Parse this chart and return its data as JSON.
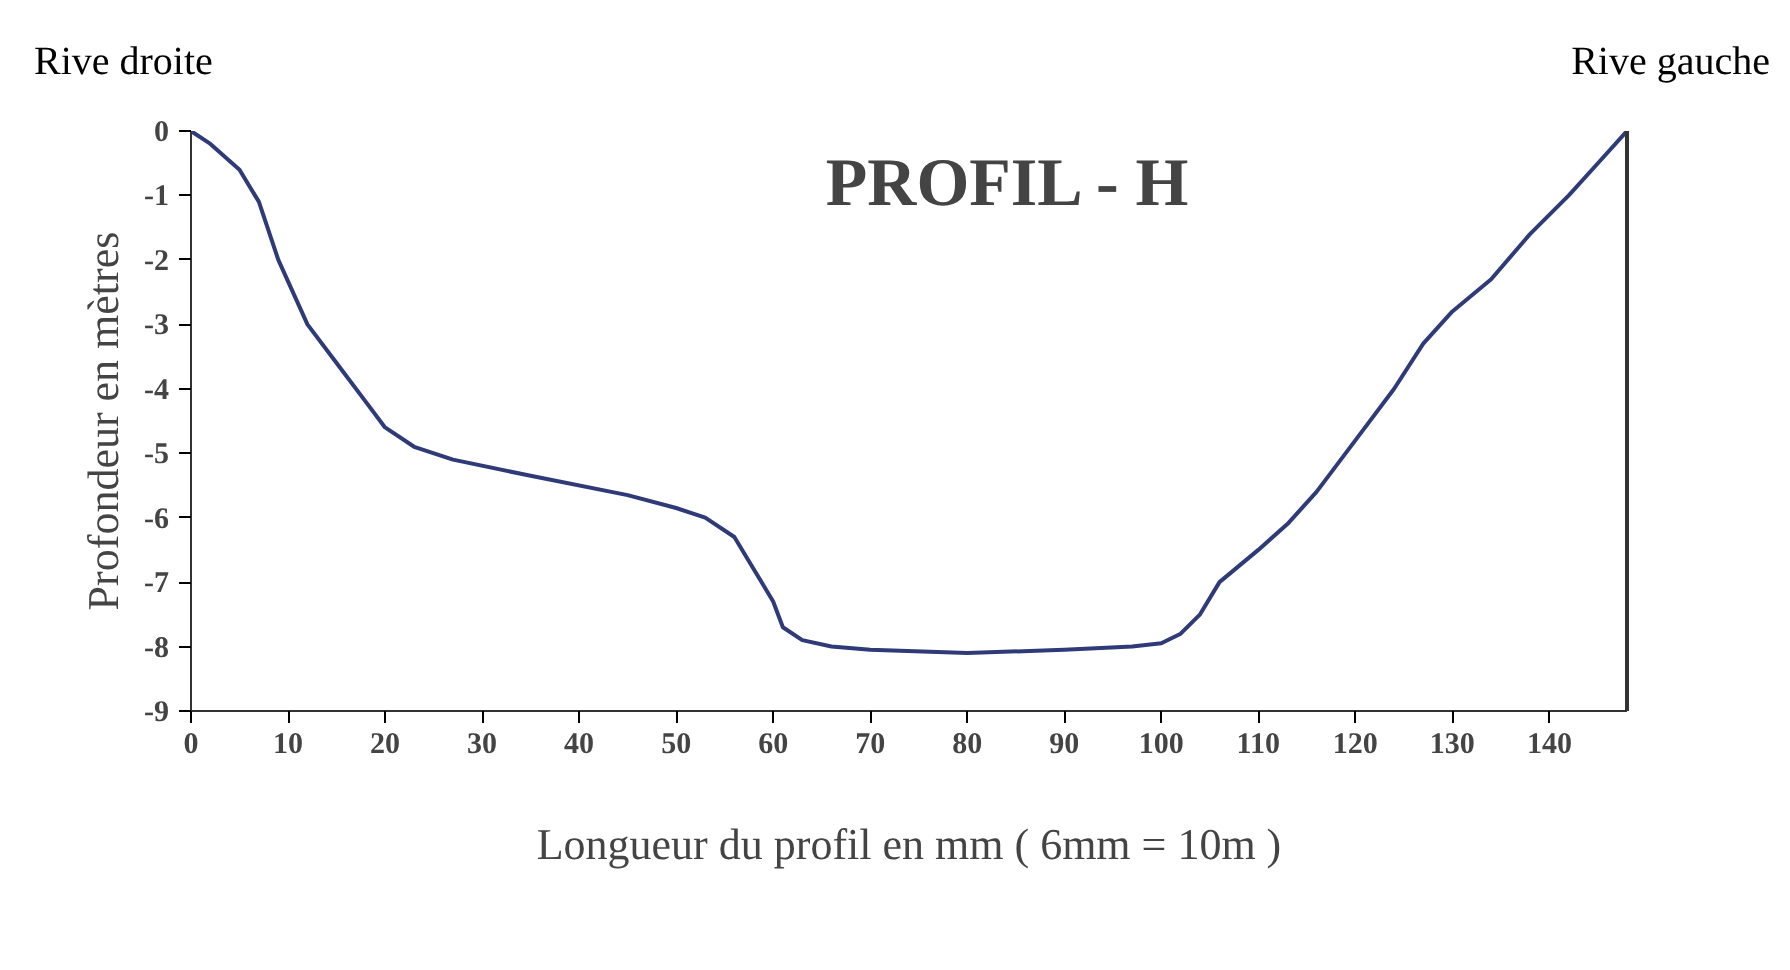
{
  "chart_data": {
    "type": "line",
    "title": "PROFIL - H",
    "xlabel": "Longueur du profil en mm ( 6mm = 10m )",
    "ylabel": "Profondeur en mètres",
    "annotations": [
      "Rive droite",
      "Rive gauche"
    ],
    "x": [
      0,
      2,
      5,
      7,
      9,
      12,
      15,
      18,
      20,
      23,
      27,
      35,
      45,
      50,
      53,
      56,
      58,
      60,
      61,
      63,
      66,
      70,
      80,
      90,
      97,
      100,
      102,
      104,
      106,
      110,
      113,
      116,
      120,
      124,
      127,
      130,
      134,
      138,
      142,
      145,
      148
    ],
    "series": [
      {
        "color": "#2f3a78",
        "values": [
          0,
          -0.2,
          -0.6,
          -1.1,
          -2.0,
          -3.0,
          -3.6,
          -4.2,
          -4.6,
          -4.9,
          -5.1,
          -5.35,
          -5.65,
          -5.85,
          -6.0,
          -6.3,
          -6.8,
          -7.3,
          -7.7,
          -7.9,
          -8.0,
          -8.05,
          -8.1,
          -8.05,
          -8.0,
          -7.95,
          -7.8,
          -7.5,
          -7.0,
          -6.5,
          -6.1,
          -5.6,
          -4.8,
          -4.0,
          -3.3,
          -2.8,
          -2.3,
          -1.6,
          -1.0,
          -0.5,
          0
        ]
      }
    ],
    "xlim": [
      0,
      148
    ],
    "ylim": [
      -9,
      0
    ],
    "xticks": [
      0,
      10,
      20,
      30,
      40,
      50,
      60,
      70,
      80,
      90,
      100,
      110,
      120,
      130,
      140
    ],
    "yticks": [
      0,
      -1,
      -2,
      -3,
      -4,
      -5,
      -6,
      -7,
      -8,
      -9
    ],
    "grid": false
  }
}
